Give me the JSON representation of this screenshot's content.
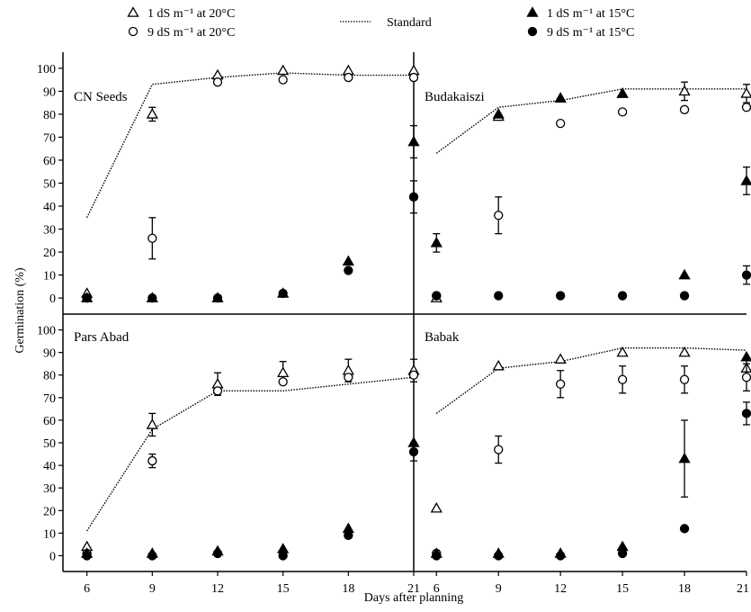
{
  "legend": [
    {
      "label": "1 dS m⁻¹ at 20°C",
      "marker": "triangle-open"
    },
    {
      "label": "9 dS m⁻¹ at 20°C",
      "marker": "circle-open"
    },
    {
      "label": "Standard",
      "marker": "dotted-line"
    },
    {
      "label": "1 dS m⁻¹ at 15°C",
      "marker": "triangle-filled"
    },
    {
      "label": "9 dS m⁻¹ at 15°C",
      "marker": "circle-filled"
    }
  ],
  "xlabel": "Days after planning",
  "ylabel": "Germination (%)",
  "chart_data": {
    "type": "scatter",
    "x": [
      6,
      9,
      12,
      15,
      18,
      21
    ],
    "xlim": [
      4.9,
      21
    ],
    "ylim": [
      -7,
      107
    ],
    "yticks": [
      0,
      10,
      20,
      30,
      40,
      50,
      60,
      70,
      80,
      90,
      100
    ],
    "grid": false,
    "legend_position": "top",
    "panels": [
      {
        "title": "CN Seeds",
        "series": [
          {
            "name": "1 dS m⁻¹ at 20°C",
            "marker": "triangle-open",
            "y": [
              2,
              80,
              97,
              99,
              99,
              99
            ],
            "err": [
              0,
              3,
              0,
              0,
              0,
              0
            ]
          },
          {
            "name": "9 dS m⁻¹ at 20°C",
            "marker": "circle-open",
            "y": [
              0,
              26,
              94,
              95,
              96,
              96
            ],
            "err": [
              0,
              9,
              0,
              0,
              0,
              0
            ]
          },
          {
            "name": "1 dS m⁻¹ at 15°C",
            "marker": "triangle-filled",
            "y": [
              0,
              0,
              0,
              2,
              16,
              68
            ],
            "err": [
              0,
              0,
              0,
              0,
              0,
              7
            ]
          },
          {
            "name": "9 dS m⁻¹ at 15°C",
            "marker": "circle-filled",
            "y": [
              0,
              0,
              0,
              2,
              12,
              44
            ],
            "err": [
              0,
              0,
              0,
              0,
              0,
              7
            ]
          },
          {
            "name": "Standard",
            "marker": "dotted-line",
            "y": [
              35,
              93,
              96,
              98,
              97,
              97
            ],
            "err": [
              0,
              0,
              0,
              0,
              0,
              0
            ]
          }
        ]
      },
      {
        "title": "Budakaiszi",
        "series": [
          {
            "name": "1 dS m⁻¹ at 20°C",
            "marker": "triangle-open",
            "y": [
              0,
              79,
              87,
              89,
              90,
              89
            ],
            "err": [
              0,
              0,
              0,
              0,
              4,
              4
            ]
          },
          {
            "name": "9 dS m⁻¹ at 20°C",
            "marker": "circle-open",
            "y": [
              1,
              36,
              76,
              81,
              82,
              83
            ],
            "err": [
              0,
              8,
              0,
              0,
              0,
              0
            ]
          },
          {
            "name": "1 dS m⁻¹ at 15°C",
            "marker": "triangle-filled",
            "y": [
              24,
              80,
              87,
              89,
              10,
              51
            ],
            "err": [
              4,
              0,
              0,
              0,
              0,
              6
            ]
          },
          {
            "name": "9 dS m⁻¹ at 15°C",
            "marker": "circle-filled",
            "y": [
              1,
              1,
              1,
              1,
              1,
              10
            ],
            "err": [
              0,
              0,
              0,
              0,
              0,
              4
            ]
          },
          {
            "name": "Standard",
            "marker": "dotted-line",
            "y": [
              63,
              83,
              86,
              91,
              91,
              91
            ],
            "err": [
              0,
              0,
              0,
              0,
              0,
              0
            ]
          }
        ]
      },
      {
        "title": "Pars Abad",
        "series": [
          {
            "name": "1 dS m⁻¹ at 20°C",
            "marker": "triangle-open",
            "y": [
              4,
              58,
              76,
              81,
              82,
              82
            ],
            "err": [
              0,
              5,
              5,
              5,
              5,
              5
            ]
          },
          {
            "name": "9 dS m⁻¹ at 20°C",
            "marker": "circle-open",
            "y": [
              1,
              42,
              73,
              77,
              79,
              80
            ],
            "err": [
              0,
              3,
              0,
              0,
              0,
              0
            ]
          },
          {
            "name": "1 dS m⁻¹ at 15°C",
            "marker": "triangle-filled",
            "y": [
              1,
              1,
              2,
              3,
              12,
              50
            ],
            "err": [
              0,
              0,
              0,
              0,
              0,
              0
            ]
          },
          {
            "name": "9 dS m⁻¹ at 15°C",
            "marker": "circle-filled",
            "y": [
              0,
              0,
              1,
              0,
              9,
              46
            ],
            "err": [
              0,
              0,
              0,
              0,
              0,
              4
            ]
          },
          {
            "name": "Standard",
            "marker": "dotted-line",
            "y": [
              11,
              56,
              73,
              73,
              76,
              79
            ],
            "err": [
              0,
              0,
              0,
              0,
              0,
              0
            ]
          }
        ]
      },
      {
        "title": "Babak",
        "series": [
          {
            "name": "1 dS m⁻¹ at 20°C",
            "marker": "triangle-open",
            "y": [
              21,
              84,
              87,
              90,
              90,
              83
            ],
            "err": [
              0,
              0,
              0,
              0,
              0,
              4
            ]
          },
          {
            "name": "9 dS m⁻¹ at 20°C",
            "marker": "circle-open",
            "y": [
              1,
              47,
              76,
              78,
              78,
              79
            ],
            "err": [
              0,
              6,
              6,
              6,
              6,
              6
            ]
          },
          {
            "name": "1 dS m⁻¹ at 15°C",
            "marker": "triangle-filled",
            "y": [
              1,
              1,
              1,
              4,
              43,
              88
            ],
            "err": [
              0,
              0,
              0,
              0,
              17,
              0
            ]
          },
          {
            "name": "9 dS m⁻¹ at 15°C",
            "marker": "circle-filled",
            "y": [
              0,
              0,
              0,
              1,
              12,
              63
            ],
            "err": [
              0,
              0,
              0,
              0,
              0,
              5
            ]
          },
          {
            "name": "Standard",
            "marker": "dotted-line",
            "y": [
              63,
              83,
              86,
              92,
              92,
              91
            ],
            "err": [
              0,
              0,
              0,
              0,
              0,
              0
            ]
          }
        ]
      }
    ]
  }
}
